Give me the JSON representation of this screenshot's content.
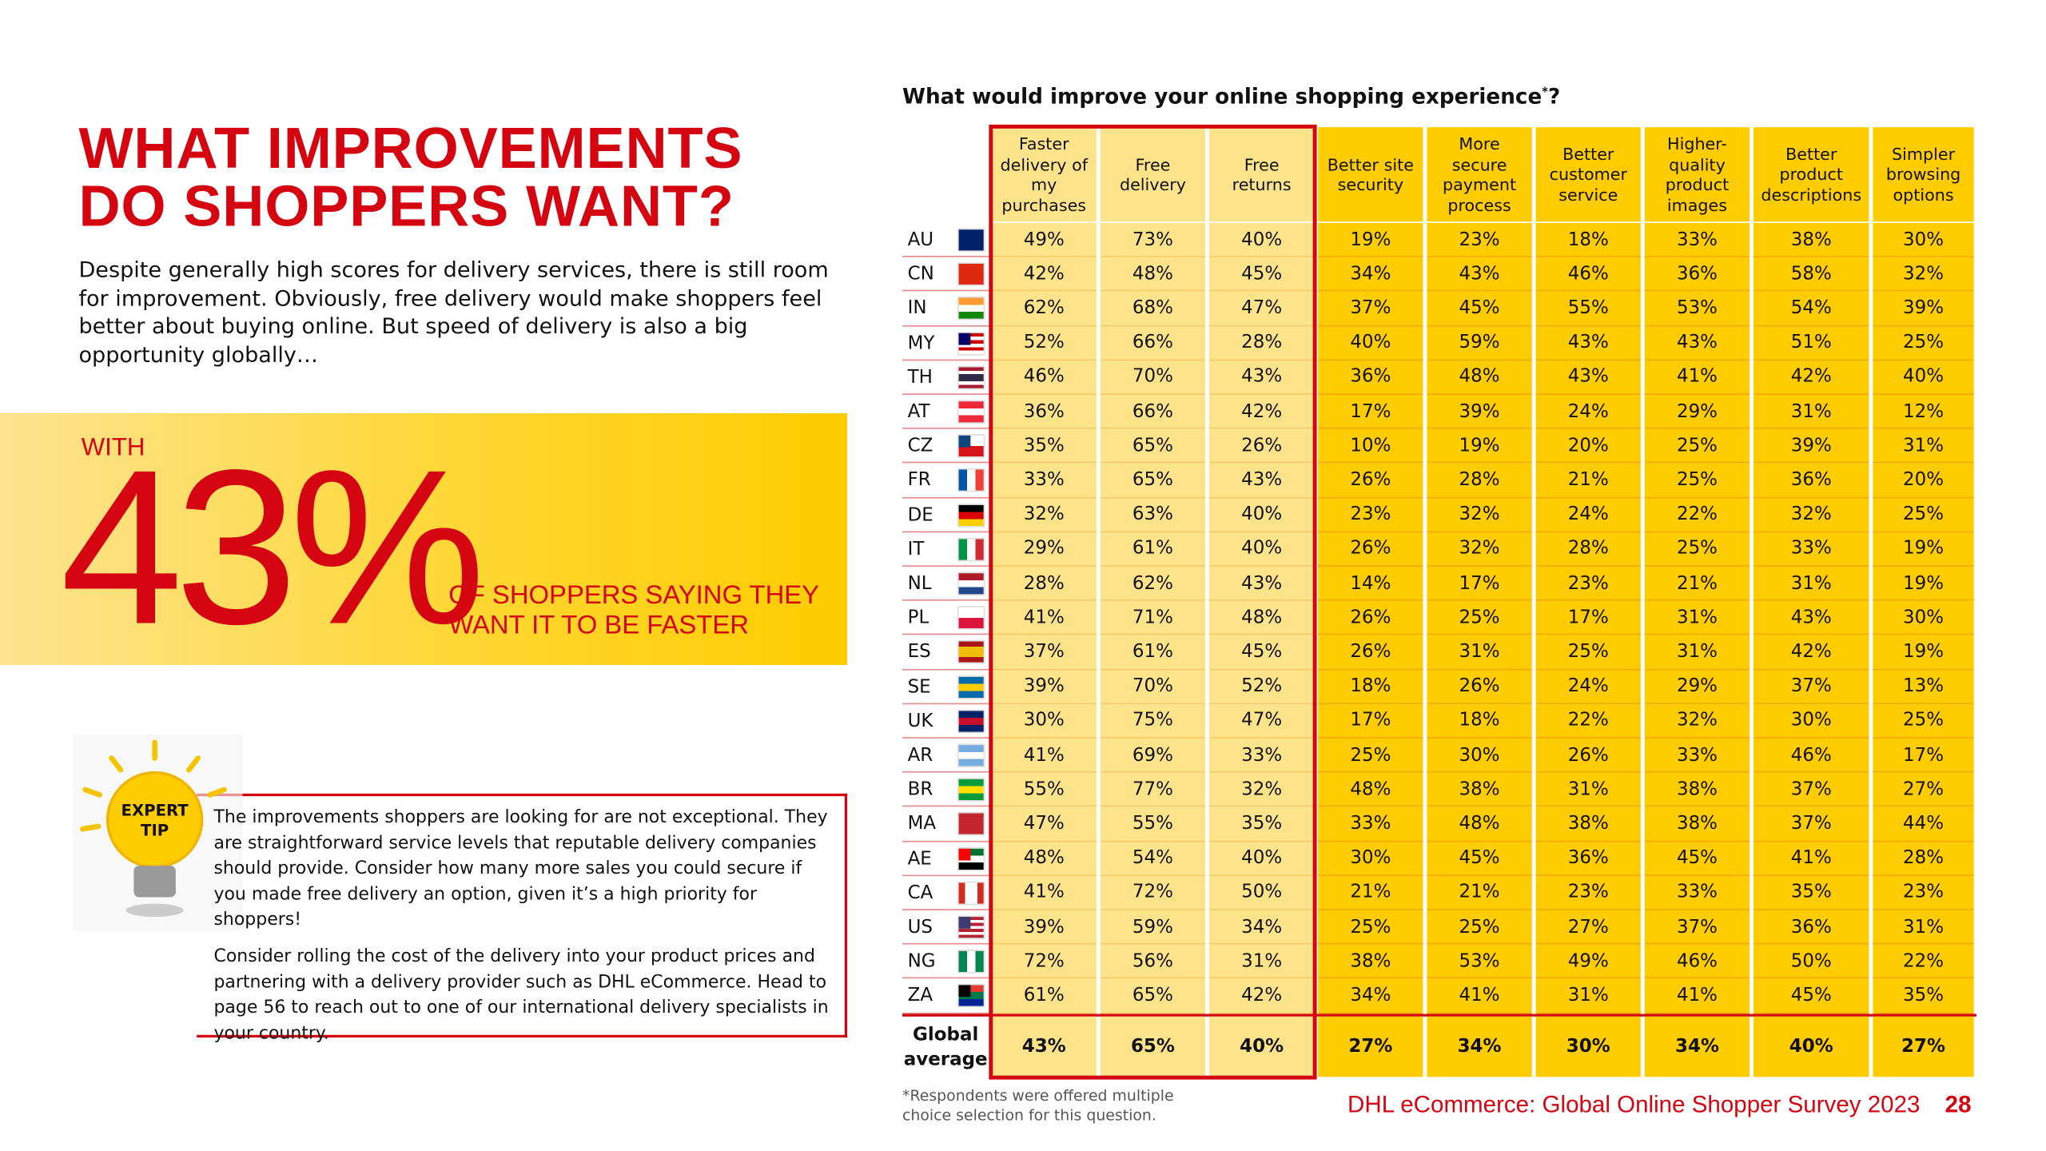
{
  "heading": {
    "lines": [
      "WHAT IMPROVEMENTS",
      "DO SHOPPERS WANT?"
    ]
  },
  "intro": "Despite generally high scores for delivery services, there is still room for improvement. Obviously, free delivery would make shoppers feel better about buying online. But speed of delivery is also a big opportunity globally…",
  "callout": {
    "prefix": "WITH",
    "figure": "43%",
    "text_lines": [
      "OF SHOPPERS SAYING THEY",
      "WANT IT TO BE FASTER"
    ]
  },
  "expert_tip": {
    "badge_lines": [
      "EXPERT",
      "TIP"
    ],
    "paragraphs": [
      "The improvements shoppers are looking for are not exceptional. They are straightforward service levels that reputable delivery companies should provide. Consider how many more sales you could secure if you made free delivery an option, given it’s a high priority for shoppers!",
      "Consider rolling the cost of the delivery into your product prices and partnering with a delivery provider such as DHL eCommerce. Head to page 56 to reach out to one of our international delivery specialists in your country."
    ]
  },
  "table": {
    "title": "What would improve your online shopping experience",
    "title_mark": "*",
    "title_end": "?",
    "columns": [
      "Faster delivery of my purchases",
      "Free delivery",
      "Free returns",
      "Better site security",
      "More secure payment process",
      "Better customer service",
      "Higher-quality product images",
      "Better product descriptions",
      "Simpler browsing options"
    ],
    "rows": [
      [
        "AU",
        "49%",
        "73%",
        "40%",
        "19%",
        "23%",
        "18%",
        "33%",
        "38%",
        "30%"
      ],
      [
        "CN",
        "42%",
        "48%",
        "45%",
        "34%",
        "43%",
        "46%",
        "36%",
        "58%",
        "32%"
      ],
      [
        "IN",
        "62%",
        "68%",
        "47%",
        "37%",
        "45%",
        "55%",
        "53%",
        "54%",
        "39%"
      ],
      [
        "MY",
        "52%",
        "66%",
        "28%",
        "40%",
        "59%",
        "43%",
        "43%",
        "51%",
        "25%"
      ],
      [
        "TH",
        "46%",
        "70%",
        "43%",
        "36%",
        "48%",
        "43%",
        "41%",
        "42%",
        "40%"
      ],
      [
        "AT",
        "36%",
        "66%",
        "42%",
        "17%",
        "39%",
        "24%",
        "29%",
        "31%",
        "12%"
      ],
      [
        "CZ",
        "35%",
        "65%",
        "26%",
        "10%",
        "19%",
        "20%",
        "25%",
        "39%",
        "31%"
      ],
      [
        "FR",
        "33%",
        "65%",
        "43%",
        "26%",
        "28%",
        "21%",
        "25%",
        "36%",
        "20%"
      ],
      [
        "DE",
        "32%",
        "63%",
        "40%",
        "23%",
        "32%",
        "24%",
        "22%",
        "32%",
        "25%"
      ],
      [
        "IT",
        "29%",
        "61%",
        "40%",
        "26%",
        "32%",
        "28%",
        "25%",
        "33%",
        "19%"
      ],
      [
        "NL",
        "28%",
        "62%",
        "43%",
        "14%",
        "17%",
        "23%",
        "21%",
        "31%",
        "19%"
      ],
      [
        "PL",
        "41%",
        "71%",
        "48%",
        "26%",
        "25%",
        "17%",
        "31%",
        "43%",
        "30%"
      ],
      [
        "ES",
        "37%",
        "61%",
        "45%",
        "26%",
        "31%",
        "25%",
        "31%",
        "42%",
        "19%"
      ],
      [
        "SE",
        "39%",
        "70%",
        "52%",
        "18%",
        "26%",
        "24%",
        "29%",
        "37%",
        "13%"
      ],
      [
        "UK",
        "30%",
        "75%",
        "47%",
        "17%",
        "18%",
        "22%",
        "32%",
        "30%",
        "25%"
      ],
      [
        "AR",
        "41%",
        "69%",
        "33%",
        "25%",
        "30%",
        "26%",
        "33%",
        "46%",
        "17%"
      ],
      [
        "BR",
        "55%",
        "77%",
        "32%",
        "48%",
        "38%",
        "31%",
        "38%",
        "37%",
        "27%"
      ],
      [
        "MA",
        "47%",
        "55%",
        "35%",
        "33%",
        "48%",
        "38%",
        "38%",
        "37%",
        "44%"
      ],
      [
        "AE",
        "48%",
        "54%",
        "40%",
        "30%",
        "45%",
        "36%",
        "45%",
        "41%",
        "28%"
      ],
      [
        "CA",
        "41%",
        "72%",
        "50%",
        "21%",
        "21%",
        "23%",
        "33%",
        "35%",
        "23%"
      ],
      [
        "US",
        "39%",
        "59%",
        "34%",
        "25%",
        "25%",
        "27%",
        "37%",
        "36%",
        "31%"
      ],
      [
        "NG",
        "72%",
        "56%",
        "31%",
        "38%",
        "53%",
        "49%",
        "46%",
        "50%",
        "22%"
      ],
      [
        "ZA",
        "61%",
        "65%",
        "42%",
        "34%",
        "41%",
        "31%",
        "41%",
        "45%",
        "35%"
      ]
    ],
    "total": [
      "Global average",
      "43%",
      "65%",
      "40%",
      "27%",
      "34%",
      "30%",
      "34%",
      "40%",
      "27%"
    ],
    "footnote": "*Respondents were offered multiple choice selection for this question."
  },
  "footer": {
    "text": "DHL eCommerce: Global Online Shopper Survey 2023",
    "page": "28"
  }
}
